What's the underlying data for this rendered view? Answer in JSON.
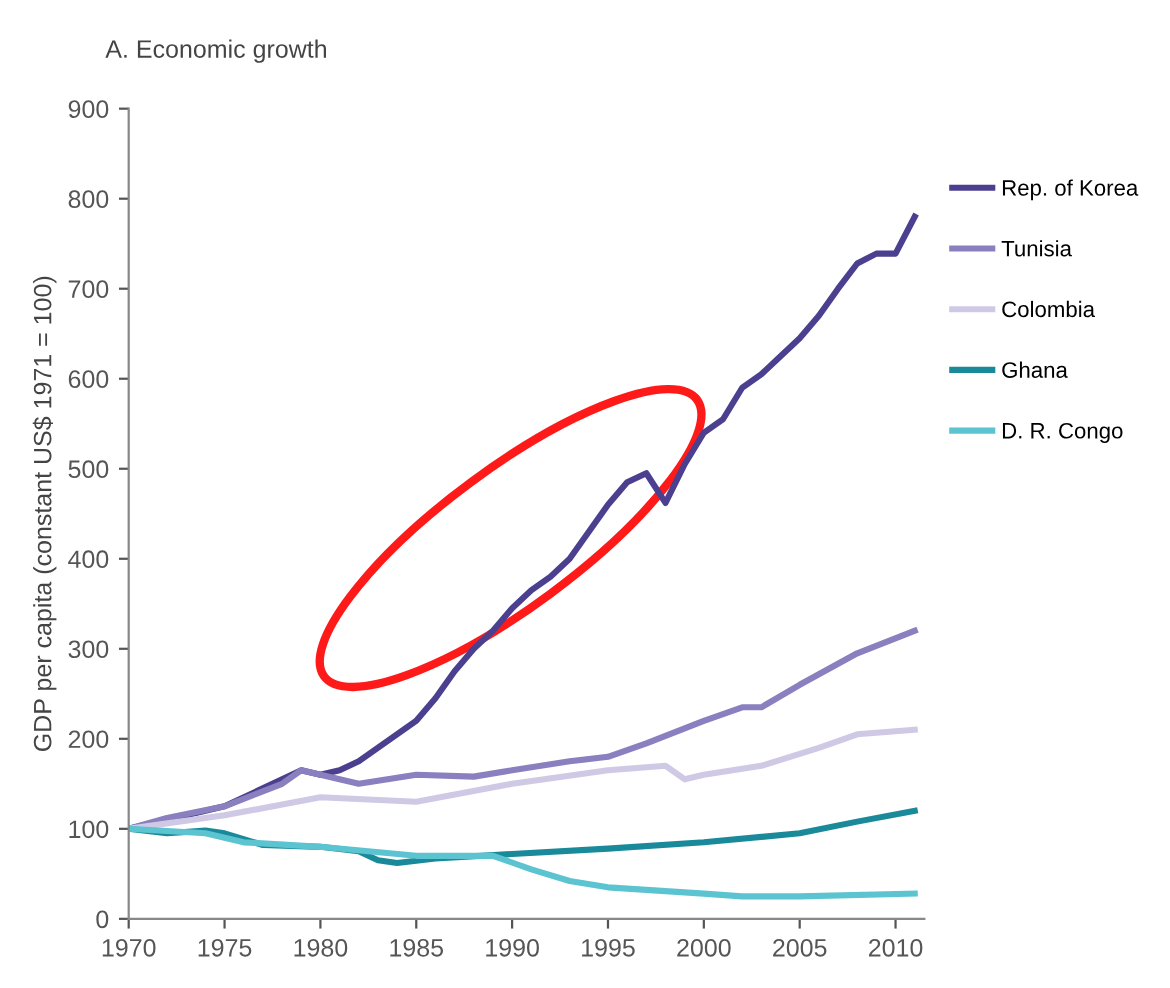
{
  "chart_data": {
    "type": "line",
    "title": "A. Economic growth",
    "ylabel": "GDP per capita (constant US$ 1971 = 100)",
    "xlim": [
      1970,
      2011.5
    ],
    "xticks": [
      1970,
      1975,
      1980,
      1985,
      1990,
      1995,
      2000,
      2005,
      2010
    ],
    "ylim": [
      0,
      900
    ],
    "yticks": [
      0,
      100,
      200,
      300,
      400,
      500,
      600,
      700,
      800,
      900
    ],
    "grid": false,
    "legend": "right",
    "marker": "none",
    "line_style": "solid",
    "series": [
      {
        "name": "Rep. of Korea",
        "color": "#4b3f8f",
        "x": [
          1970,
          1972,
          1975,
          1978,
          1979,
          1980,
          1981,
          1982,
          1983,
          1984,
          1985,
          1986,
          1987,
          1988,
          1989,
          1990,
          1991,
          1992,
          1993,
          1994,
          1995,
          1996,
          1997,
          1998,
          1999,
          2000,
          2001,
          2002,
          2003,
          2004,
          2005,
          2006,
          2007,
          2008,
          2009,
          2010,
          2011
        ],
        "values": [
          100,
          110,
          125,
          155,
          165,
          160,
          165,
          175,
          190,
          205,
          220,
          245,
          275,
          300,
          320,
          345,
          365,
          380,
          400,
          430,
          460,
          485,
          495,
          462,
          505,
          540,
          555,
          590,
          605,
          625,
          645,
          670,
          700,
          728,
          739,
          739,
          780
        ]
      },
      {
        "name": "Tunisia",
        "color": "#8a7fbf",
        "x": [
          1970,
          1972,
          1975,
          1978,
          1979,
          1980,
          1981,
          1982,
          1985,
          1988,
          1990,
          1993,
          1995,
          1997,
          2000,
          2002,
          2003,
          2005,
          2008,
          2011
        ],
        "values": [
          100,
          112,
          125,
          150,
          165,
          160,
          155,
          150,
          160,
          158,
          165,
          175,
          180,
          195,
          220,
          235,
          235,
          260,
          295,
          320
        ]
      },
      {
        "name": "Colombia",
        "color": "#cfc9e6",
        "x": [
          1970,
          1975,
          1980,
          1985,
          1990,
          1995,
          1998,
          1999,
          2000,
          2003,
          2006,
          2008,
          2011
        ],
        "values": [
          100,
          115,
          135,
          130,
          150,
          165,
          170,
          155,
          160,
          170,
          190,
          205,
          210
        ]
      },
      {
        "name": "Ghana",
        "color": "#1a8a9a",
        "x": [
          1970,
          1972,
          1974,
          1975,
          1977,
          1980,
          1982,
          1983,
          1984,
          1986,
          1990,
          1995,
          2000,
          2005,
          2008,
          2011
        ],
        "values": [
          100,
          95,
          98,
          95,
          82,
          80,
          75,
          65,
          62,
          67,
          72,
          78,
          85,
          95,
          108,
          120
        ]
      },
      {
        "name": "D. R. Congo",
        "color": "#5cc4d0",
        "x": [
          1970,
          1974,
          1976,
          1980,
          1985,
          1989,
          1991,
          1993,
          1995,
          2000,
          2002,
          2005,
          2011
        ],
        "values": [
          100,
          95,
          85,
          80,
          70,
          70,
          55,
          42,
          35,
          28,
          25,
          25,
          28
        ]
      }
    ]
  }
}
